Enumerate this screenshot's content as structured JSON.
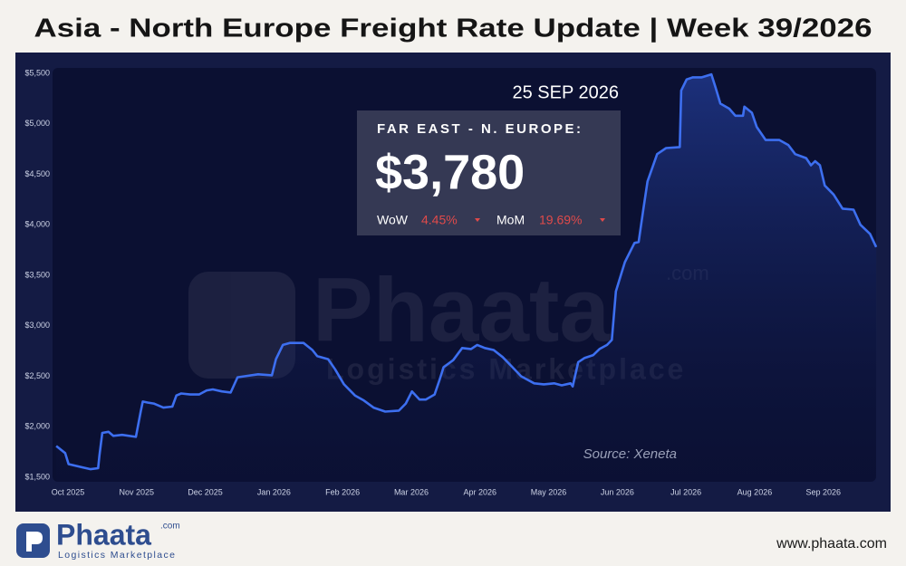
{
  "chart_data": {
    "type": "line",
    "title": "Asia - North Europe Freight Rate Update | Week 39/2026",
    "date": "25 SEP 2026",
    "box_title": "FAR EAST - N. EUROPE:",
    "price": "$3,780",
    "wow_label": "WoW",
    "wow_value": "4.45%",
    "mom_label": "MoM",
    "mom_value": "19.69%",
    "source": "Source: Xeneta",
    "xlim": [
      -0.2,
      11.8
    ],
    "xticks": [
      {
        "value": 0,
        "label": "Oct 2025"
      },
      {
        "value": 1,
        "label": "Nov 2025"
      },
      {
        "value": 2,
        "label": "Dec 2025"
      },
      {
        "value": 3,
        "label": "Jan 2026"
      },
      {
        "value": 4,
        "label": "Feb 2026"
      },
      {
        "value": 5,
        "label": "Mar 2026"
      },
      {
        "value": 6,
        "label": "Apr 2026"
      },
      {
        "value": 7,
        "label": "May 2026"
      },
      {
        "value": 8,
        "label": "Jun 2026"
      },
      {
        "value": 9,
        "label": "Jul 2026"
      },
      {
        "value": 10,
        "label": "Aug 2026"
      },
      {
        "value": 11,
        "label": "Sep 2026"
      }
    ],
    "ylim": [
      1450,
      5550
    ],
    "yticks": [
      {
        "value": 1500,
        "label": "$1,500"
      },
      {
        "value": 2000,
        "label": "$2,000"
      },
      {
        "value": 2500,
        "label": "$2,500"
      },
      {
        "value": 3000,
        "label": "$3,000"
      },
      {
        "value": 3500,
        "label": "$3,500"
      },
      {
        "value": 4000,
        "label": "$4,000"
      },
      {
        "value": 4500,
        "label": "$4,500"
      },
      {
        "value": 5000,
        "label": "$5,000"
      },
      {
        "value": 5500,
        "label": "$5,500"
      }
    ],
    "grid": false,
    "color": "#3d6ff0",
    "x": [
      -0.17,
      -0.04,
      0.01,
      0.2,
      0.33,
      0.44,
      0.46,
      0.5,
      0.59,
      0.66,
      0.79,
      0.99,
      1.06,
      1.09,
      1.16,
      1.25,
      1.39,
      1.52,
      1.58,
      1.65,
      1.78,
      1.91,
      2.02,
      2.11,
      2.24,
      2.37,
      2.47,
      2.57,
      2.77,
      2.97,
      3.03,
      3.13,
      3.23,
      3.43,
      3.56,
      3.63,
      3.79,
      3.89,
      4.02,
      4.18,
      4.31,
      4.45,
      4.62,
      4.82,
      4.92,
      5.01,
      5.12,
      5.21,
      5.34,
      5.41,
      5.47,
      5.61,
      5.74,
      5.87,
      5.96,
      6.07,
      6.2,
      6.33,
      6.46,
      6.6,
      6.79,
      6.93,
      7.08,
      7.19,
      7.32,
      7.35,
      7.43,
      7.52,
      7.65,
      7.74,
      7.85,
      7.92,
      7.98,
      8.06,
      8.11,
      8.25,
      8.31,
      8.38,
      8.44,
      8.58,
      8.71,
      8.91,
      8.93,
      9.01,
      9.1,
      9.23,
      9.37,
      9.43,
      9.5,
      9.63,
      9.72,
      9.83,
      9.85,
      9.96,
      10.03,
      10.16,
      10.36,
      10.49,
      10.59,
      10.75,
      10.82,
      10.88,
      10.95,
      11.02,
      11.15,
      11.28,
      11.44,
      11.54,
      11.68,
      11.77
    ],
    "values": [
      1810,
      1740,
      1630,
      1600,
      1580,
      1590,
      1720,
      1940,
      1950,
      1910,
      1920,
      1900,
      2150,
      2250,
      2240,
      2230,
      2190,
      2200,
      2310,
      2330,
      2320,
      2320,
      2360,
      2370,
      2350,
      2340,
      2490,
      2500,
      2520,
      2510,
      2670,
      2810,
      2830,
      2830,
      2760,
      2700,
      2670,
      2570,
      2420,
      2310,
      2260,
      2190,
      2150,
      2160,
      2230,
      2350,
      2270,
      2270,
      2320,
      2460,
      2590,
      2660,
      2780,
      2770,
      2810,
      2780,
      2760,
      2690,
      2600,
      2500,
      2430,
      2420,
      2430,
      2410,
      2430,
      2400,
      2640,
      2680,
      2710,
      2770,
      2810,
      2860,
      3340,
      3520,
      3630,
      3820,
      3830,
      4160,
      4430,
      4700,
      4760,
      4770,
      5330,
      5440,
      5460,
      5460,
      5490,
      5360,
      5200,
      5150,
      5080,
      5080,
      5170,
      5110,
      4970,
      4840,
      4840,
      4790,
      4700,
      4660,
      4590,
      4630,
      4590,
      4390,
      4300,
      4160,
      4150,
      4000,
      3910,
      3780
    ]
  },
  "branding": {
    "logo": "Phaata",
    "logo_suffix": ".com",
    "tagline": "Logistics Marketplace",
    "website": "www.phaata.com"
  }
}
